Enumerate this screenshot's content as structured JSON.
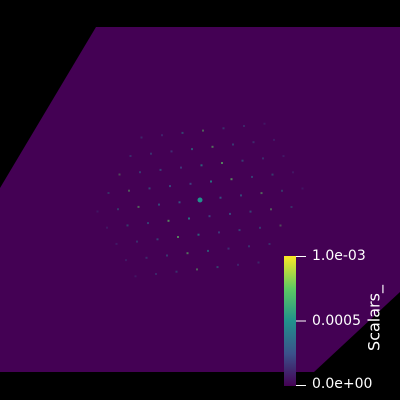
{
  "viewer": {
    "background_color": "#000000",
    "plane_color": "#440154",
    "colormap": "viridis"
  },
  "scalar_bar": {
    "title": "Scalars_",
    "ticks": [
      {
        "value": 0.001,
        "label": "1.0e-03"
      },
      {
        "value": 0.0005,
        "label": "0.0005"
      },
      {
        "value": 0.0,
        "label": "0.0e+00"
      }
    ],
    "range": [
      0.0,
      0.001
    ],
    "colors": [
      "#440154",
      "#3b528b",
      "#21918c",
      "#5ec962",
      "#fde725"
    ]
  }
}
